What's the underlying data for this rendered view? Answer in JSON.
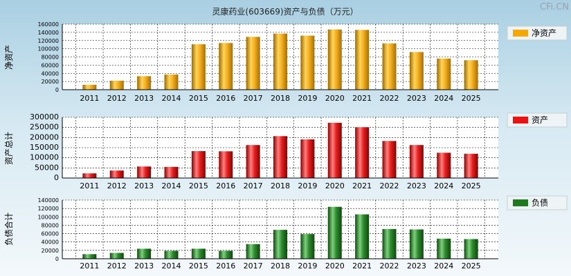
{
  "header": {
    "title": "灵康药业(603669)资产与负债（万元）",
    "brand": "CFi.CN"
  },
  "chart_data": [
    {
      "type": "bar",
      "ylabel": "净资产",
      "legend": "净资产",
      "color": "#f5a800",
      "categories": [
        "2011",
        "2012",
        "2013",
        "2014",
        "2015",
        "2016",
        "2017",
        "2018",
        "2019",
        "2020",
        "2021",
        "2022",
        "2023",
        "2024",
        "2025"
      ],
      "values": [
        12000,
        22000,
        33000,
        37000,
        111000,
        114000,
        129000,
        137000,
        132000,
        147000,
        146000,
        113000,
        92000,
        76000,
        72000
      ],
      "ylim": [
        0,
        160000
      ],
      "yticks": [
        0,
        20000,
        40000,
        60000,
        80000,
        100000,
        120000,
        140000,
        160000
      ],
      "legend_position": "right"
    },
    {
      "type": "bar",
      "ylabel": "资产总计",
      "legend": "资产",
      "color": "#ee1111",
      "categories": [
        "2011",
        "2012",
        "2013",
        "2014",
        "2015",
        "2016",
        "2017",
        "2018",
        "2019",
        "2020",
        "2021",
        "2022",
        "2023",
        "2024",
        "2025"
      ],
      "values": [
        23000,
        37000,
        57000,
        55000,
        133000,
        132000,
        163000,
        207000,
        191000,
        273000,
        251000,
        183000,
        163000,
        125000,
        120000
      ],
      "ylim": [
        0,
        300000
      ],
      "yticks": [
        0,
        50000,
        100000,
        150000,
        200000,
        250000,
        300000
      ],
      "legend_position": "right"
    },
    {
      "type": "bar",
      "ylabel": "负债合计",
      "legend": "负债",
      "color": "#1f7a1f",
      "categories": [
        "2011",
        "2012",
        "2013",
        "2014",
        "2015",
        "2016",
        "2017",
        "2018",
        "2019",
        "2020",
        "2021",
        "2022",
        "2023",
        "2024",
        "2025"
      ],
      "values": [
        11000,
        14000,
        24000,
        19000,
        24000,
        19000,
        35000,
        69000,
        59000,
        124000,
        106000,
        71000,
        70000,
        48000,
        47000
      ],
      "ylim": [
        0,
        140000
      ],
      "yticks": [
        0,
        20000,
        40000,
        60000,
        80000,
        100000,
        120000,
        140000
      ],
      "legend_position": "right"
    }
  ]
}
